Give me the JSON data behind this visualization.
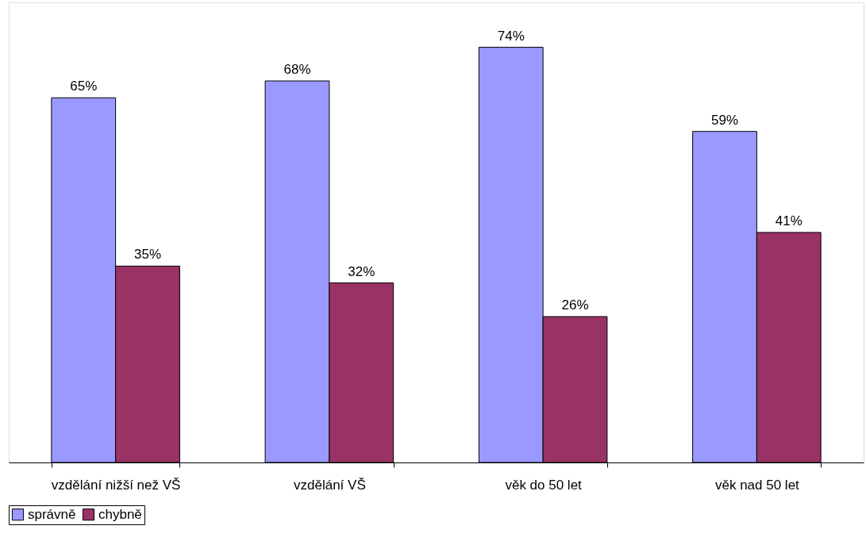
{
  "chart_data": {
    "type": "bar",
    "categories": [
      "vzdělání nižší než VŠ",
      "vzdělání VŠ",
      "věk do 50 let",
      "věk nad 50 let"
    ],
    "series": [
      {
        "name": "správně",
        "color": "#9999ff",
        "values": [
          65,
          68,
          74,
          59
        ],
        "value_labels": [
          "65%",
          "68%",
          "74%",
          "59%"
        ]
      },
      {
        "name": "chybně",
        "color": "#993366",
        "values": [
          35,
          32,
          26,
          41
        ],
        "value_labels": [
          "35%",
          "32%",
          "26%",
          "41%"
        ]
      }
    ],
    "ylim": [
      0,
      82
    ],
    "tick_labels": "x",
    "grid": false,
    "legend": "bottom"
  }
}
